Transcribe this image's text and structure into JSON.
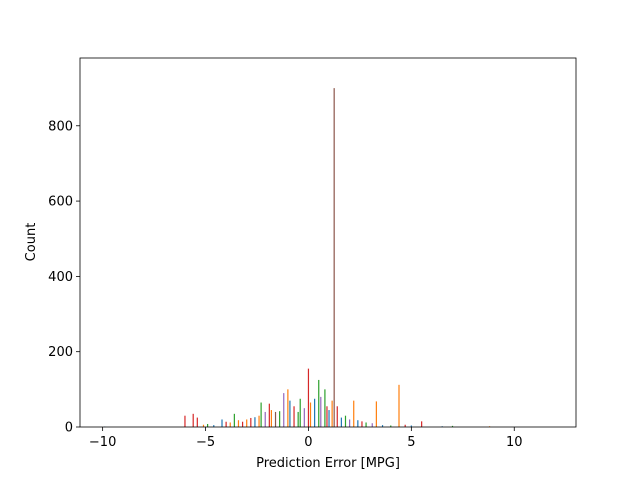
{
  "chart_data": {
    "type": "bar",
    "title": "",
    "xlabel": "Prediction Error [MPG]",
    "ylabel": "Count",
    "xlim": [
      -11.1,
      13.0
    ],
    "ylim": [
      0,
      980
    ],
    "xticks": [
      -10,
      -5,
      0,
      5,
      10
    ],
    "xtick_labels": [
      "−10",
      "−5",
      "0",
      "5",
      "10"
    ],
    "yticks": [
      0,
      200,
      400,
      600,
      800
    ],
    "ytick_labels": [
      "0",
      "200",
      "400",
      "600",
      "800"
    ],
    "grid": false,
    "legend": "none",
    "series_colors": [
      "#1f77b4",
      "#ff7f0e",
      "#2ca02c",
      "#d62728",
      "#9467bd",
      "#8c564b"
    ],
    "bars": [
      {
        "x": -9.9,
        "y": 1,
        "s": 0
      },
      {
        "x": -6.0,
        "y": 30,
        "s": 3
      },
      {
        "x": -5.6,
        "y": 35,
        "s": 3
      },
      {
        "x": -5.4,
        "y": 25,
        "s": 3
      },
      {
        "x": -5.1,
        "y": 6,
        "s": 1
      },
      {
        "x": -4.9,
        "y": 8,
        "s": 2
      },
      {
        "x": -4.6,
        "y": 5,
        "s": 0
      },
      {
        "x": -4.2,
        "y": 20,
        "s": 0
      },
      {
        "x": -4.0,
        "y": 14,
        "s": 3
      },
      {
        "x": -3.8,
        "y": 12,
        "s": 1
      },
      {
        "x": -3.6,
        "y": 35,
        "s": 2
      },
      {
        "x": -3.4,
        "y": 18,
        "s": 1
      },
      {
        "x": -3.2,
        "y": 14,
        "s": 3
      },
      {
        "x": -3.0,
        "y": 20,
        "s": 1
      },
      {
        "x": -2.8,
        "y": 24,
        "s": 3
      },
      {
        "x": -2.6,
        "y": 26,
        "s": 0
      },
      {
        "x": -2.4,
        "y": 30,
        "s": 1
      },
      {
        "x": -2.3,
        "y": 65,
        "s": 2
      },
      {
        "x": -2.1,
        "y": 40,
        "s": 4
      },
      {
        "x": -1.9,
        "y": 62,
        "s": 3
      },
      {
        "x": -1.8,
        "y": 45,
        "s": 1
      },
      {
        "x": -1.6,
        "y": 40,
        "s": 5
      },
      {
        "x": -1.4,
        "y": 42,
        "s": 2
      },
      {
        "x": -1.2,
        "y": 90,
        "s": 4
      },
      {
        "x": -1.0,
        "y": 100,
        "s": 1
      },
      {
        "x": -0.9,
        "y": 70,
        "s": 0
      },
      {
        "x": -0.7,
        "y": 55,
        "s": 3
      },
      {
        "x": -0.5,
        "y": 40,
        "s": 2
      },
      {
        "x": -0.4,
        "y": 75,
        "s": 2
      },
      {
        "x": -0.2,
        "y": 50,
        "s": 4
      },
      {
        "x": 0.0,
        "y": 155,
        "s": 3
      },
      {
        "x": 0.1,
        "y": 65,
        "s": 1
      },
      {
        "x": 0.3,
        "y": 75,
        "s": 0
      },
      {
        "x": 0.5,
        "y": 125,
        "s": 2
      },
      {
        "x": 0.6,
        "y": 80,
        "s": 4
      },
      {
        "x": 0.8,
        "y": 100,
        "s": 2
      },
      {
        "x": 0.9,
        "y": 55,
        "s": 3
      },
      {
        "x": 1.0,
        "y": 45,
        "s": 0
      },
      {
        "x": 1.15,
        "y": 70,
        "s": 1
      },
      {
        "x": 1.25,
        "y": 900,
        "s": 5
      },
      {
        "x": 1.4,
        "y": 55,
        "s": 3
      },
      {
        "x": 1.6,
        "y": 25,
        "s": 0
      },
      {
        "x": 1.8,
        "y": 30,
        "s": 2
      },
      {
        "x": 2.0,
        "y": 20,
        "s": 4
      },
      {
        "x": 2.2,
        "y": 70,
        "s": 1
      },
      {
        "x": 2.4,
        "y": 18,
        "s": 0
      },
      {
        "x": 2.6,
        "y": 15,
        "s": 3
      },
      {
        "x": 2.8,
        "y": 12,
        "s": 2
      },
      {
        "x": 3.1,
        "y": 10,
        "s": 4
      },
      {
        "x": 3.3,
        "y": 68,
        "s": 1
      },
      {
        "x": 3.6,
        "y": 5,
        "s": 0
      },
      {
        "x": 4.0,
        "y": 4,
        "s": 2
      },
      {
        "x": 4.4,
        "y": 112,
        "s": 1
      },
      {
        "x": 4.7,
        "y": 6,
        "s": 3
      },
      {
        "x": 5.0,
        "y": 4,
        "s": 0
      },
      {
        "x": 5.5,
        "y": 15,
        "s": 3
      },
      {
        "x": 6.5,
        "y": 2,
        "s": 0
      },
      {
        "x": 7.0,
        "y": 3,
        "s": 2
      },
      {
        "x": 8.8,
        "y": 2,
        "s": 1
      }
    ]
  }
}
